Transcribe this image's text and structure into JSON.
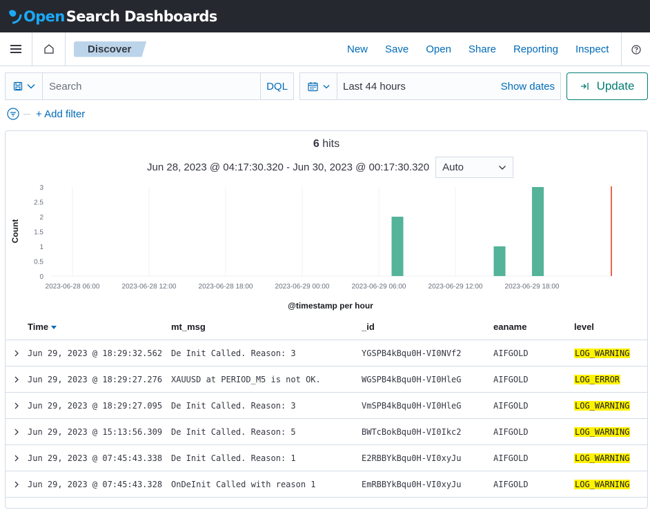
{
  "brand": {
    "open": "Open",
    "rest": "Search Dashboards"
  },
  "breadcrumb": "Discover",
  "nav_links": [
    "New",
    "Save",
    "Open",
    "Share",
    "Reporting",
    "Inspect"
  ],
  "search": {
    "placeholder": "Search",
    "language": "DQL"
  },
  "date": {
    "label": "Last 44 hours",
    "show_dates": "Show dates"
  },
  "update_label": "Update",
  "add_filter": "+ Add filter",
  "hits": {
    "count": "6",
    "label": "hits"
  },
  "time_range": "Jun 28, 2023 @ 04:17:30.320 - Jun 30, 2023 @ 00:17:30.320",
  "interval": "Auto",
  "chart_data": {
    "type": "bar",
    "ylabel": "Count",
    "xlabel": "@timestamp per hour",
    "y_ticks": [
      "0",
      "0.5",
      "1",
      "1.5",
      "2",
      "2.5",
      "3"
    ],
    "ylim": [
      0,
      3
    ],
    "x_ticks": [
      "2023-06-28 06:00",
      "2023-06-28 12:00",
      "2023-06-28 18:00",
      "2023-06-29 00:00",
      "2023-06-29 06:00",
      "2023-06-29 12:00",
      "2023-06-29 18:00"
    ],
    "bars": [
      {
        "x": "2023-06-29 07:00",
        "value": 2
      },
      {
        "x": "2023-06-29 15:00",
        "value": 1
      },
      {
        "x": "2023-06-29 18:00",
        "value": 3
      }
    ],
    "bar_color": "#54b399",
    "now_marker_color": "#e7664c",
    "grid": true
  },
  "table": {
    "columns": [
      "Time",
      "mt_msg",
      "_id",
      "eaname",
      "level"
    ],
    "rows": [
      {
        "time": "Jun 29, 2023 @ 18:29:32.562",
        "msg": "De Init Called. Reason: 3",
        "id": "YGSPB4kBqu0H-VI0NVf2",
        "ea": "AIFGOLD",
        "level": "LOG_WARNING"
      },
      {
        "time": "Jun 29, 2023 @ 18:29:27.276",
        "msg": "XAUUSD at PERIOD_M5 is not OK.",
        "id": "WGSPB4kBqu0H-VI0HleG",
        "ea": "AIFGOLD",
        "level": "LOG_ERROR"
      },
      {
        "time": "Jun 29, 2023 @ 18:29:27.095",
        "msg": "De Init Called. Reason: 3",
        "id": "VmSPB4kBqu0H-VI0HleG",
        "ea": "AIFGOLD",
        "level": "LOG_WARNING"
      },
      {
        "time": "Jun 29, 2023 @ 15:13:56.309",
        "msg": "De Init Called. Reason: 5",
        "id": "BWTcBokBqu0H-VI0Ikc2",
        "ea": "AIFGOLD",
        "level": "LOG_WARNING"
      },
      {
        "time": "Jun 29, 2023 @ 07:45:43.338",
        "msg": "De Init Called. Reason: 1",
        "id": "E2RBBYkBqu0H-VI0xyJu",
        "ea": "AIFGOLD",
        "level": "LOG_WARNING"
      },
      {
        "time": "Jun 29, 2023 @ 07:45:43.328",
        "msg": "OnDeInit Called with reason 1",
        "id": "EmRBBYkBqu0H-VI0xyJu",
        "ea": "AIFGOLD",
        "level": "LOG_WARNING"
      }
    ]
  },
  "icons": [
    "menu-icon",
    "home-icon",
    "help-icon",
    "save-query-icon",
    "chevron-down-icon",
    "calendar-icon",
    "refresh-icon",
    "filter-icon",
    "chevron-right-icon",
    "sort-down-icon"
  ]
}
